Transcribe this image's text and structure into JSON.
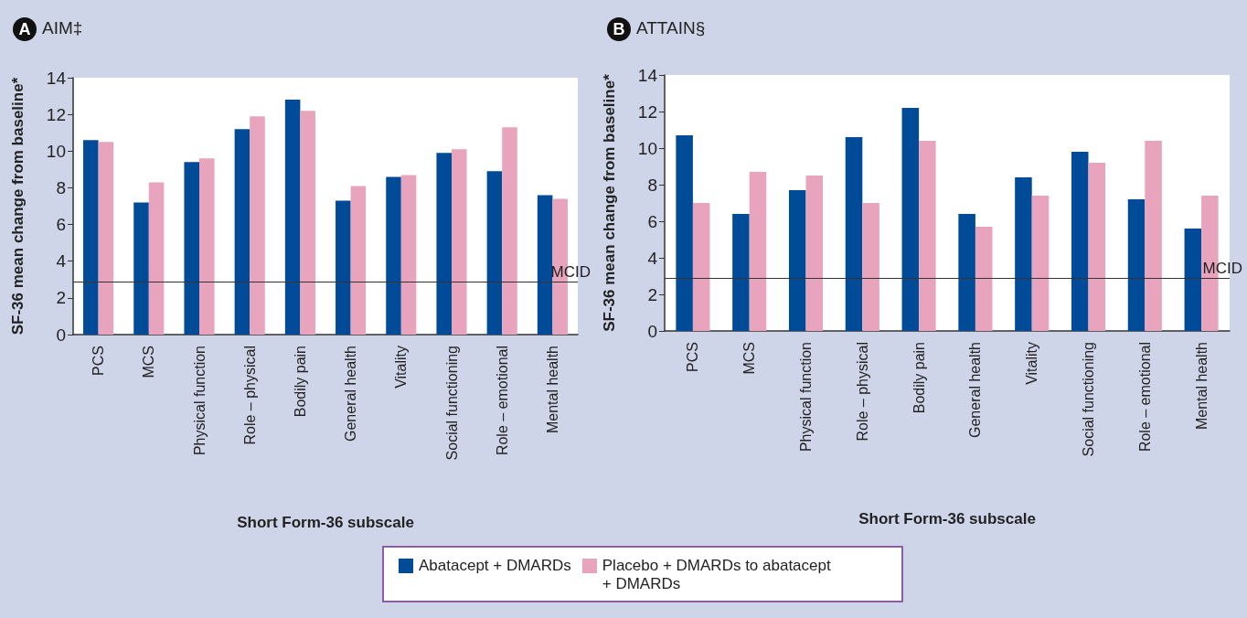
{
  "chart_data": [
    {
      "type": "bar",
      "title": "AIM‡",
      "annotations": [
        "A"
      ],
      "xlabel": "Short Form-36 subscale",
      "ylabel": "SF-36 mean change from baseline*",
      "categories": [
        "PCS",
        "MCS",
        "Physical function",
        "Role – physical",
        "Bodily pain",
        "General health",
        "Vitality",
        "Social functioning",
        "Role – emotional",
        "Mental health"
      ],
      "series": [
        {
          "name": "Abatacept + DMARDs",
          "color": "#004b97",
          "values": [
            10.6,
            7.2,
            9.4,
            11.2,
            12.8,
            7.3,
            8.6,
            9.9,
            8.9,
            7.6
          ]
        },
        {
          "name": "Placebo + DMARDs to abatacept + DMARDs",
          "color": "#e8a4bc",
          "values": [
            10.5,
            8.3,
            9.6,
            11.9,
            12.2,
            8.1,
            8.7,
            10.1,
            11.3,
            7.4
          ]
        }
      ],
      "ylim": [
        0,
        14
      ],
      "yticks": [
        0,
        2,
        4,
        6,
        8,
        10,
        12,
        14
      ],
      "ref_lines": [
        {
          "axis": "y",
          "value": 2.9,
          "label": "MCID",
          "color": "#333333"
        }
      ],
      "legend": "bottom",
      "grid": false
    },
    {
      "type": "bar",
      "title": "ATTAIN§",
      "annotations": [
        "B"
      ],
      "xlabel": "Short Form-36 subscale",
      "ylabel": "SF-36 mean change from baseline*",
      "categories": [
        "PCS",
        "MCS",
        "Physical function",
        "Role – physical",
        "Bodily pain",
        "General health",
        "Vitality",
        "Social functioning",
        "Role – emotional",
        "Mental health"
      ],
      "series": [
        {
          "color": "#004b97",
          "values": [
            10.7,
            6.4,
            7.7,
            10.6,
            12.2,
            6.4,
            8.4,
            9.8,
            7.2,
            5.6
          ]
        },
        {
          "color": "#e8a4bc",
          "values": [
            7.0,
            8.7,
            8.5,
            7.0,
            10.4,
            5.7,
            7.4,
            9.2,
            10.4,
            7.4
          ]
        }
      ],
      "ylim": [
        0,
        14
      ],
      "yticks": [
        0,
        2,
        4,
        6,
        8,
        10,
        12,
        14
      ],
      "ref_lines": [
        {
          "axis": "y",
          "value": 2.9,
          "label": "MCID",
          "color": "#333333"
        }
      ],
      "grid": false
    }
  ]
}
